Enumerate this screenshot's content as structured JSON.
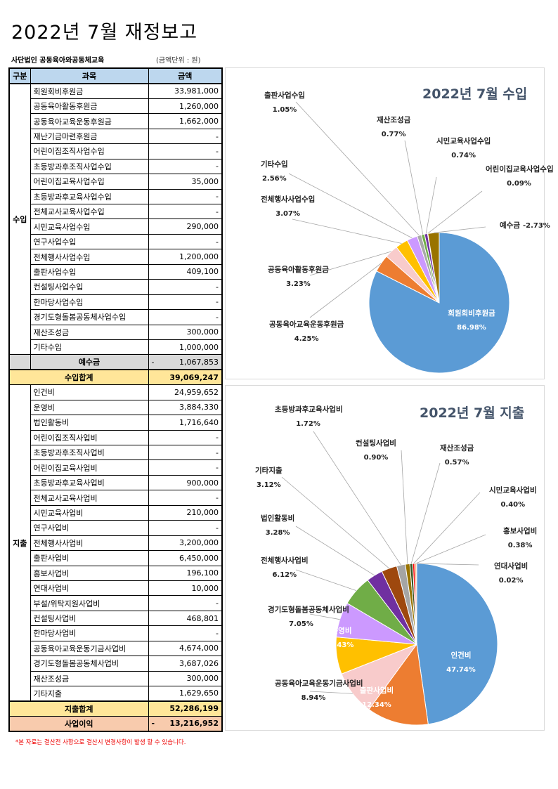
{
  "title": "2022년 7월 재정보고",
  "org": "사단법인 공동육아와공동체교육",
  "unit": "(금액단위 : 원)",
  "table": {
    "headers": [
      "구분",
      "과목",
      "금액"
    ],
    "income_label": "수입",
    "income": [
      [
        "회원회비후원금",
        "33,981,000"
      ],
      [
        "공동육아활동후원금",
        "1,260,000"
      ],
      [
        "공동육아교육운동후원금",
        "1,662,000"
      ],
      [
        "재난기금마련후원금",
        "-"
      ],
      [
        "어린이집조직사업수입",
        "-"
      ],
      [
        "초등방과후조직사업수입",
        "-"
      ],
      [
        "어린이집교육사업수입",
        "35,000"
      ],
      [
        "초등방과후교육사업수입",
        "-"
      ],
      [
        "전체교사교육사업수입",
        "-"
      ],
      [
        "시민교육사업수입",
        "290,000"
      ],
      [
        "연구사업수입",
        "-"
      ],
      [
        "전체행사사업수입",
        "1,200,000"
      ],
      [
        "출판사업수입",
        "409,100"
      ],
      [
        "컨설팅사업수입",
        "-"
      ],
      [
        "한마당사업수입",
        "-"
      ],
      [
        "경기도형돌봄공동체사업수입",
        "-"
      ],
      [
        "재산조성금",
        "300,000"
      ],
      [
        "기타수입",
        "1,000,000"
      ]
    ],
    "deposit": {
      "label": "예수금",
      "sign": "-",
      "value": "1,067,853"
    },
    "income_total": {
      "label": "수입합계",
      "value": "39,069,247"
    },
    "expense_label": "지출",
    "expense": [
      [
        "인건비",
        "24,959,652"
      ],
      [
        "운영비",
        "3,884,330"
      ],
      [
        "법인활동비",
        "1,716,640"
      ],
      [
        "어린이집조직사업비",
        "-"
      ],
      [
        "초등방과후조직사업비",
        "-"
      ],
      [
        "어린이집교육사업비",
        "-"
      ],
      [
        "초등방과후교육사업비",
        "900,000"
      ],
      [
        "전체교사교육사업비",
        "-"
      ],
      [
        "시민교육사업비",
        "210,000"
      ],
      [
        "연구사업비",
        "-"
      ],
      [
        "전체행사사업비",
        "3,200,000"
      ],
      [
        "출판사업비",
        "6,450,000"
      ],
      [
        "홍보사업비",
        "196,100"
      ],
      [
        "연대사업비",
        "10,000"
      ],
      [
        "부설/위탁지원사업비",
        "-"
      ],
      [
        "컨설팅사업비",
        "468,801"
      ],
      [
        "한마당사업비",
        "-"
      ],
      [
        "공동육아교육운동기금사업비",
        "4,674,000"
      ],
      [
        "경기도형돌봄공동체사업비",
        "3,687,026"
      ],
      [
        "재산조성금",
        "300,000"
      ],
      [
        "기타지출",
        "1,629,650"
      ]
    ],
    "expense_total": {
      "label": "지출합계",
      "value": "52,286,199"
    },
    "profit": {
      "label": "사업이익",
      "sign": "-",
      "value": "13,216,952"
    }
  },
  "note": "*본 자료는 결산전 사항으로 결산시 변경사항이 발생 할 수 있습니다.",
  "colors": {
    "header": "#BDD7EE",
    "deposit": "#D9D9D9",
    "total": "#FFE699",
    "profit": "#F8CBAD"
  },
  "chart_data": [
    {
      "type": "pie",
      "title": "2022년 7월 수입",
      "slices": [
        {
          "label": "회원회비후원금",
          "value": 86.98,
          "text": "86.98%",
          "color": "#5B9BD5"
        },
        {
          "label": "공동육아교육운동후원금",
          "value": 4.25,
          "text": "4.25%",
          "color": "#ED7D31"
        },
        {
          "label": "공동육아활동후원금",
          "value": 3.23,
          "text": "3.23%",
          "color": "#F8CBCB"
        },
        {
          "label": "전체행사사업수입",
          "value": 3.07,
          "text": "3.07%",
          "color": "#FFC000"
        },
        {
          "label": "기타수입",
          "value": 2.56,
          "text": "2.56%",
          "color": "#CC99FF"
        },
        {
          "label": "출판사업수입",
          "value": 1.05,
          "text": "1.05%",
          "color": "#A9A9A9"
        },
        {
          "label": "재산조성금",
          "value": 0.77,
          "text": "0.77%",
          "color": "#70AD47"
        },
        {
          "label": "시민교육사업수입",
          "value": 0.74,
          "text": "0.74%",
          "color": "#7030A0"
        },
        {
          "label": "어린이집교육사업수입",
          "value": 0.09,
          "text": "0.09%",
          "color": "#C00000"
        },
        {
          "label": "예수금",
          "value": -2.73,
          "text": "-2.73%",
          "color": "#997300"
        }
      ]
    },
    {
      "type": "pie",
      "title": "2022년 7월 지출",
      "slices": [
        {
          "label": "인건비",
          "value": 47.74,
          "text": "47.74%",
          "color": "#5B9BD5"
        },
        {
          "label": "출판사업비",
          "value": 12.34,
          "text": "12.34%",
          "color": "#ED7D31"
        },
        {
          "label": "공동육아교육운동기금사업비",
          "value": 8.94,
          "text": "8.94%",
          "color": "#F8CBCB"
        },
        {
          "label": "운영비",
          "value": 7.43,
          "text": "7.43%",
          "color": "#FFC000"
        },
        {
          "label": "경기도형돌봄공동체사업비",
          "value": 7.05,
          "text": "7.05%",
          "color": "#CC99FF"
        },
        {
          "label": "전체행사사업비",
          "value": 6.12,
          "text": "6.12%",
          "color": "#70AD47"
        },
        {
          "label": "법인활동비",
          "value": 3.28,
          "text": "3.28%",
          "color": "#7030A0"
        },
        {
          "label": "기타지출",
          "value": 3.12,
          "text": "3.12%",
          "color": "#9E480E"
        },
        {
          "label": "초등방과후교육사업비",
          "value": 1.72,
          "text": "1.72%",
          "color": "#A5A5A5"
        },
        {
          "label": "컨설팅사업비",
          "value": 0.9,
          "text": "0.90%",
          "color": "#997300"
        },
        {
          "label": "재산조성금",
          "value": 0.57,
          "text": "0.57%",
          "color": "#375623"
        },
        {
          "label": "시민교육사업비",
          "value": 0.4,
          "text": "0.40%",
          "color": "#FF0000"
        },
        {
          "label": "홍보사업비",
          "value": 0.38,
          "text": "0.38%",
          "color": "#F4B183"
        },
        {
          "label": "연대사업비",
          "value": 0.02,
          "text": "0.02%",
          "color": "#FFE699"
        }
      ]
    }
  ]
}
